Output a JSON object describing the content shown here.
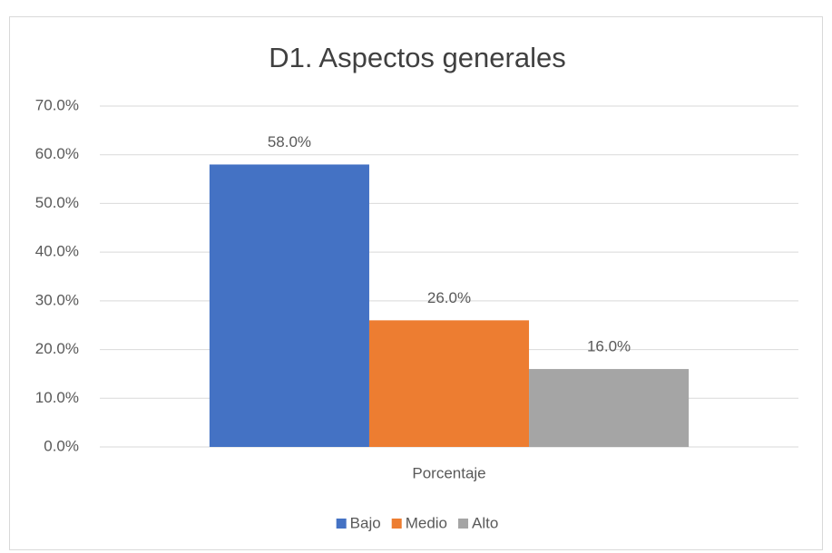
{
  "chart_data": {
    "type": "bar",
    "title": "D1. Aspectos generales",
    "categories": [
      "Porcentaje"
    ],
    "series": [
      {
        "name": "Bajo",
        "color": "#4472c4",
        "values": [
          58
        ],
        "value_labels": [
          "58.0%"
        ]
      },
      {
        "name": "Medio",
        "color": "#ed7d31",
        "values": [
          26
        ],
        "value_labels": [
          "26.0%"
        ]
      },
      {
        "name": "Alto",
        "color": "#a5a5a5",
        "values": [
          16
        ],
        "value_labels": [
          "16.0%"
        ]
      }
    ],
    "ylim": [
      0,
      70
    ],
    "yticks": [
      {
        "value": 0,
        "label": "0.0%"
      },
      {
        "value": 10,
        "label": "10.0%"
      },
      {
        "value": 20,
        "label": "20.0%"
      },
      {
        "value": 30,
        "label": "30.0%"
      },
      {
        "value": 40,
        "label": "40.0%"
      },
      {
        "value": 50,
        "label": "50.0%"
      },
      {
        "value": 60,
        "label": "60.0%"
      },
      {
        "value": 70,
        "label": "70.0%"
      }
    ],
    "grid": true,
    "legend": "bottom"
  }
}
